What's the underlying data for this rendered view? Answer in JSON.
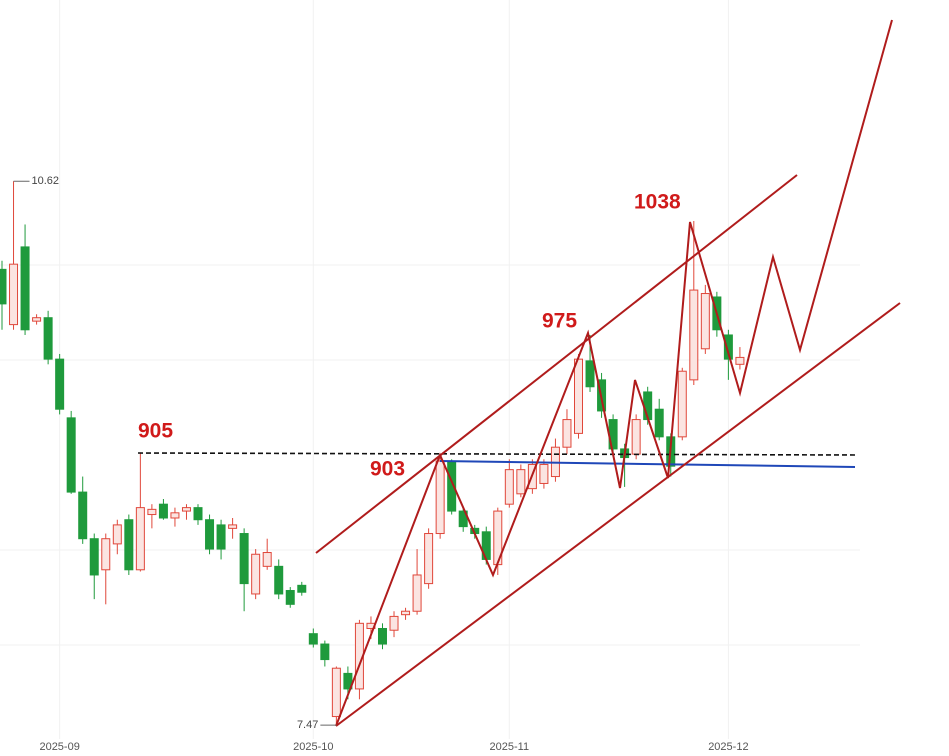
{
  "chart_data": {
    "type": "candlestick",
    "categories": [
      null,
      null,
      null,
      null,
      null,
      "2025-09",
      null,
      null,
      null,
      null,
      null,
      null,
      null,
      null,
      null,
      null,
      null,
      null,
      null,
      null,
      null,
      null,
      null,
      null,
      null,
      null,
      null,
      "2025-10",
      null,
      null,
      null,
      null,
      null,
      null,
      null,
      null,
      null,
      null,
      null,
      null,
      null,
      null,
      null,
      null,
      "2025-11",
      null,
      null,
      null,
      null,
      null,
      null,
      null,
      null,
      null,
      null,
      null,
      null,
      null,
      null,
      null,
      null,
      null,
      null,
      "2025-12",
      null
    ],
    "open": [
      10.11,
      9.79,
      10.24,
      9.81,
      9.83,
      9.59,
      9.25,
      8.82,
      8.55,
      8.37,
      8.52,
      8.66,
      8.37,
      8.69,
      8.75,
      8.67,
      8.71,
      8.73,
      8.66,
      8.63,
      8.61,
      8.58,
      8.23,
      8.39,
      8.39,
      8.25,
      8.28,
      8.0,
      7.94,
      7.52,
      7.77,
      7.68,
      8.03,
      8.03,
      8.02,
      8.11,
      8.13,
      8.29,
      8.58,
      9.0,
      8.71,
      8.61,
      8.59,
      8.4,
      8.75,
      8.81,
      8.84,
      8.87,
      8.91,
      9.08,
      9.16,
      9.58,
      9.47,
      9.24,
      9.07,
      9.04,
      9.4,
      9.3,
      9.14,
      9.14,
      9.47,
      9.65,
      9.95,
      9.73,
      9.56
    ],
    "high": [
      10.16,
      10.62,
      10.37,
      9.85,
      9.87,
      9.62,
      9.29,
      8.91,
      8.58,
      8.58,
      8.66,
      8.69,
      9.05,
      8.75,
      8.78,
      8.73,
      8.75,
      8.75,
      8.69,
      8.66,
      8.67,
      8.61,
      8.49,
      8.55,
      8.43,
      8.27,
      8.3,
      8.03,
      7.96,
      7.81,
      7.81,
      8.08,
      8.1,
      8.06,
      8.13,
      8.15,
      8.49,
      8.61,
      9.04,
      9.01,
      8.73,
      8.63,
      8.62,
      8.73,
      9.01,
      8.98,
      9.01,
      9.01,
      9.13,
      9.3,
      9.62,
      9.73,
      9.51,
      9.27,
      9.1,
      9.27,
      9.43,
      9.36,
      9.16,
      9.54,
      10.39,
      10.02,
      9.98,
      9.76,
      9.66
    ],
    "low": [
      9.76,
      9.76,
      9.73,
      9.79,
      9.56,
      9.27,
      8.81,
      8.52,
      8.2,
      8.17,
      8.46,
      8.34,
      8.36,
      8.61,
      8.66,
      8.62,
      8.66,
      8.63,
      8.46,
      8.43,
      8.55,
      8.13,
      8.2,
      8.37,
      8.2,
      8.15,
      8.22,
      7.92,
      7.81,
      7.47,
      7.62,
      7.62,
      7.97,
      7.91,
      7.98,
      8.08,
      8.11,
      8.26,
      8.55,
      8.69,
      8.59,
      8.55,
      8.4,
      8.34,
      8.73,
      8.79,
      8.81,
      8.84,
      8.88,
      9.04,
      9.13,
      9.4,
      9.25,
      9.04,
      8.85,
      9.01,
      9.21,
      9.12,
      8.91,
      9.12,
      9.44,
      9.62,
      9.72,
      9.47,
      9.53
    ],
    "close": [
      9.91,
      10.14,
      9.76,
      9.83,
      9.59,
      9.3,
      8.82,
      8.55,
      8.34,
      8.55,
      8.63,
      8.37,
      8.73,
      8.72,
      8.67,
      8.7,
      8.73,
      8.66,
      8.49,
      8.49,
      8.63,
      8.29,
      8.46,
      8.47,
      8.23,
      8.17,
      8.24,
      7.94,
      7.85,
      7.8,
      7.68,
      8.06,
      8.06,
      7.94,
      8.1,
      8.13,
      8.34,
      8.58,
      9.0,
      8.71,
      8.62,
      8.58,
      8.43,
      8.71,
      8.95,
      8.95,
      8.98,
      8.98,
      9.08,
      9.24,
      9.59,
      9.43,
      9.29,
      9.07,
      9.02,
      9.24,
      9.24,
      9.14,
      8.97,
      9.52,
      9.99,
      9.97,
      9.76,
      9.59,
      9.6
    ],
    "up_color": "#e0473a",
    "down_color": "#1f9a3c",
    "ylim": [
      7.39,
      11.67
    ],
    "annotations": [
      "905",
      "903",
      "975",
      "1038"
    ]
  }
}
